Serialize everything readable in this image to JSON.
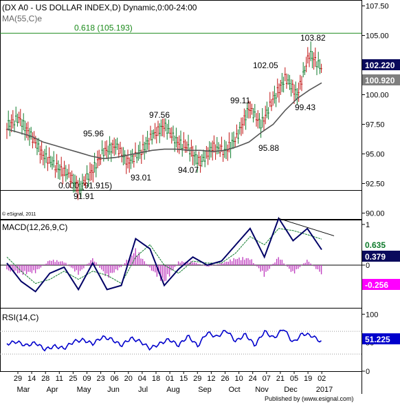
{
  "header": {
    "title": "(DX A0 - US DOLLAR INDEX,D) Dynamic,0:00-24:00",
    "ma_label": "MA(55,C)e",
    "copyright": "© eSignal, 2011",
    "publisher": "Published by (www.esignal.com)",
    "brand": "eSignal"
  },
  "chart_data": [
    {
      "type": "candlestick",
      "panel": "price",
      "ylim": [
        89.5,
        108
      ],
      "yticks": [
        90.0,
        92.5,
        95.0,
        97.5,
        100.0,
        102.5,
        105.0,
        107.5
      ],
      "ytick_labels": [
        "90.00",
        "92.50",
        "95.00",
        "97.50",
        "100.00",
        "102.50",
        "105.00",
        "107.50"
      ],
      "series": [
        {
          "name": "MA(55,C)e",
          "values": [
            97.1,
            96.8,
            96.5,
            96.0,
            95.7,
            95.4,
            95.1,
            94.8,
            94.6,
            94.7,
            94.9,
            95.1,
            95.3,
            95.4,
            95.4,
            95.3,
            95.3,
            95.2,
            95.3,
            95.6,
            96.0,
            96.8,
            97.5,
            98.7,
            99.7,
            100.4,
            101.0
          ]
        },
        {
          "name": "price",
          "values": [
            97.4,
            98.0,
            96.5,
            94.9,
            94.0,
            93.3,
            92.1,
            93.5,
            95.2,
            95.7,
            94.3,
            95.1,
            96.5,
            97.4,
            96.1,
            95.5,
            94.2,
            95.6,
            95.2,
            96.4,
            98.9,
            97.5,
            99.6,
            101.4,
            100.0,
            103.5,
            102.2
          ]
        }
      ],
      "reference_lines": [
        {
          "label": "0.618 (105.193)",
          "value": 105.193,
          "color": "#1a8a1a"
        },
        {
          "label": "0.000 (91.915)",
          "value": 91.915,
          "color": "#000000"
        }
      ],
      "annotations": [
        "91.91",
        "95.96",
        "93.01",
        "97.56",
        "94.07",
        "99.11",
        "95.88",
        "102.05",
        "99.43",
        "103.82"
      ],
      "last_labels": [
        {
          "text": "102.220",
          "value": 102.22,
          "bg": "#0a0a5c",
          "fg": "#ffffff"
        },
        {
          "text": "100.920",
          "value": 100.92,
          "bg": "#7f7f7f",
          "fg": "#ffffff"
        }
      ]
    },
    {
      "type": "line",
      "panel": "macd",
      "title": "MACD(12,26,9,C)",
      "ylim": [
        -1.05,
        1.1
      ],
      "yticks": [
        1,
        0
      ],
      "ytick_labels": [
        "1",
        "0"
      ],
      "series": [
        {
          "name": "MACD",
          "color": "#000066",
          "values": [
            0.05,
            -0.4,
            -0.65,
            -0.2,
            -0.05,
            -0.6,
            0.05,
            -0.6,
            -0.5,
            0.65,
            0.4,
            -0.5,
            -0.1,
            0.2,
            0.0,
            0.1,
            0.5,
            0.9,
            0.2,
            1.15,
            0.6,
            0.9,
            0.38
          ]
        },
        {
          "name": "Signal",
          "color": "#0d7a2a",
          "values": [
            0.2,
            -0.15,
            -0.45,
            -0.35,
            -0.15,
            -0.35,
            -0.15,
            -0.25,
            -0.45,
            0.2,
            0.5,
            0.0,
            -0.2,
            0.1,
            0.05,
            0.05,
            0.3,
            0.7,
            0.5,
            0.9,
            0.85,
            0.75,
            0.64
          ]
        },
        {
          "name": "Histogram",
          "color": "#c040c0",
          "values": [
            -0.15,
            -0.25,
            -0.2,
            0.15,
            0.1,
            -0.25,
            0.2,
            -0.35,
            -0.05,
            0.45,
            -0.1,
            -0.5,
            0.1,
            0.1,
            -0.05,
            0.05,
            0.2,
            0.2,
            -0.3,
            0.25,
            -0.25,
            0.15,
            -0.26
          ]
        }
      ],
      "last_labels": [
        {
          "text": "0.635",
          "value": 0.635,
          "bg": "#ffffff",
          "fg": "#0d7a2a"
        },
        {
          "text": "0.379",
          "value": 0.379,
          "bg": "#0a0a5c",
          "fg": "#ffffff"
        },
        {
          "text": "-0.256",
          "value": -0.256,
          "bg": "#ff00ff",
          "fg": "#ffffff"
        }
      ]
    },
    {
      "type": "line",
      "panel": "rsi",
      "title": "RSI(14,C)",
      "ylim": [
        0,
        110
      ],
      "yticks": [
        100,
        50,
        0
      ],
      "ytick_labels": [
        "100",
        "50",
        "0"
      ],
      "levels": [
        70,
        30
      ],
      "series": [
        {
          "name": "RSI",
          "color": "#0000cc",
          "values": [
            48,
            52,
            45,
            50,
            38,
            44,
            40,
            52,
            55,
            48,
            60,
            56,
            45,
            58,
            52,
            40,
            48,
            56,
            45,
            62,
            44,
            68,
            60,
            72,
            52,
            65,
            45,
            70,
            58,
            75,
            50,
            66,
            62,
            51
          ]
        }
      ],
      "last_labels": [
        {
          "text": "51.225",
          "value": 51.225,
          "bg": "#0000cc",
          "fg": "#ffffff"
        }
      ]
    }
  ],
  "x_axis": {
    "day_labels": [
      "29",
      "14",
      "28",
      "11",
      "25",
      "09",
      "23",
      "06",
      "20",
      "04",
      "18",
      "01",
      "15",
      "29",
      "12",
      "26",
      "10",
      "24",
      "07",
      "21",
      "05",
      "19",
      "02"
    ],
    "month_labels": [
      "Mar",
      "Apr",
      "May",
      "Jun",
      "Jul",
      "Aug",
      "Sep",
      "Oct",
      "Nov",
      "Dec",
      "2017"
    ]
  }
}
